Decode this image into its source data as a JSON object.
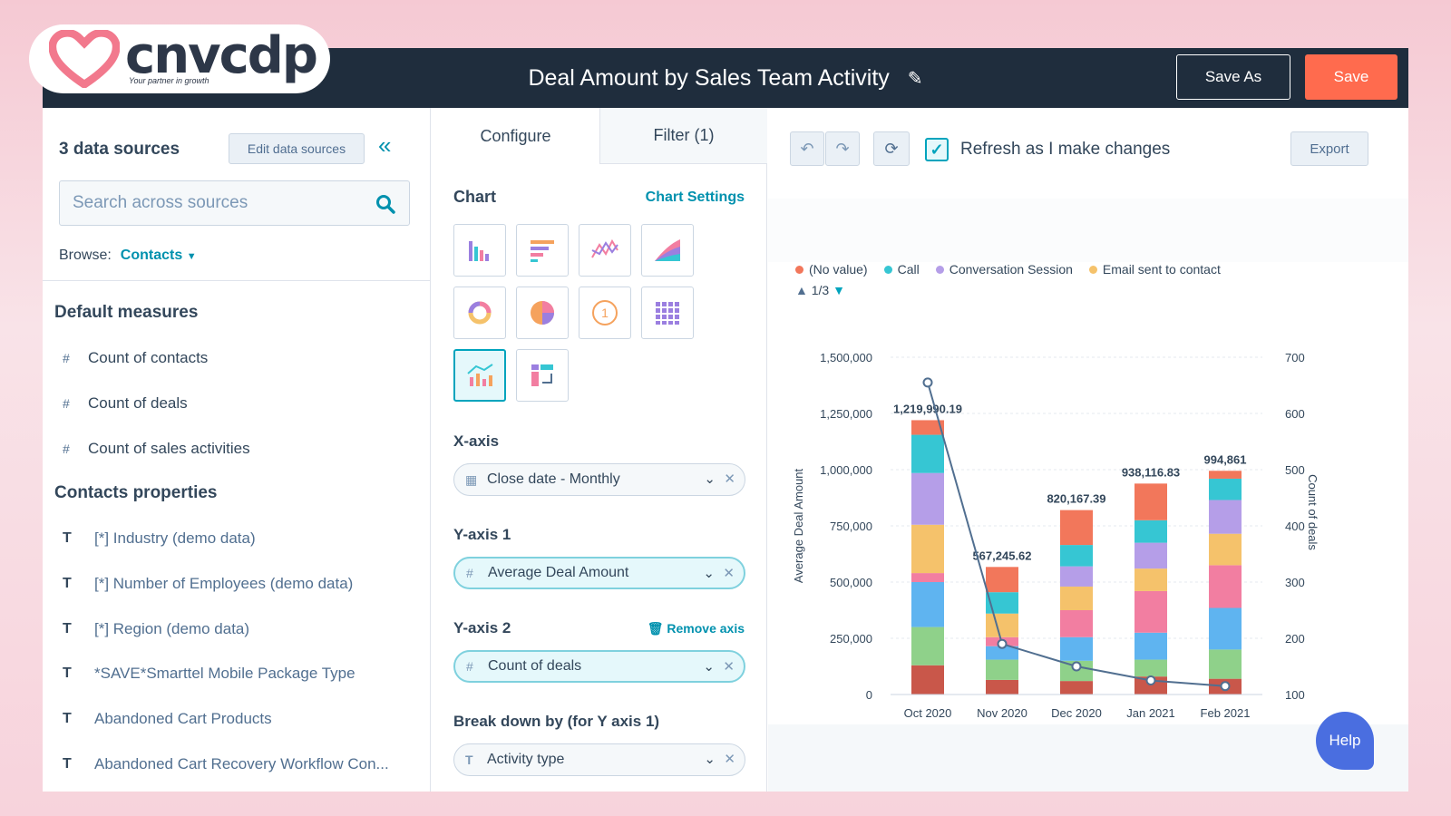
{
  "brand": {
    "name": "cnvcdp",
    "tagline": "Your partner in growth",
    "heart_color": "#f2798d"
  },
  "header": {
    "title": "Deal Amount by Sales Team Activity",
    "save_as_label": "Save As",
    "save_label": "Save"
  },
  "left_panel": {
    "data_sources_title": "3 data sources",
    "edit_sources_label": "Edit data sources",
    "search_placeholder": "Search across sources",
    "browse_label": "Browse:",
    "browse_value": "Contacts",
    "default_measures_title": "Default measures",
    "measures": [
      "Count of contacts",
      "Count of deals",
      "Count of sales activities"
    ],
    "contacts_properties_title": "Contacts properties",
    "properties": [
      "[*] Industry (demo data)",
      "[*] Number of Employees (demo data)",
      "[*] Region (demo data)",
      "*SAVE*Smarttel Mobile Package Type",
      "Abandoned Cart Products",
      "Abandoned Cart Recovery Workflow Con..."
    ]
  },
  "config_panel": {
    "tab_configure": "Configure",
    "tab_filter": "Filter (1)",
    "chart_title": "Chart",
    "chart_settings_label": "Chart Settings",
    "xaxis_label": "X-axis",
    "xaxis_value": "Close date - Monthly",
    "yaxis1_label": "Y-axis 1",
    "yaxis1_value": "Average Deal Amount",
    "yaxis2_label": "Y-axis 2",
    "remove_axis_label": "Remove axis",
    "yaxis2_value": "Count of deals",
    "breakdown_label": "Break down by (for Y axis 1)",
    "breakdown_value": "Activity type"
  },
  "chart_toolbar": {
    "refresh_label": "Refresh as I make changes",
    "refresh_checked": true,
    "export_label": "Export"
  },
  "legend_items": [
    {
      "name": "(No value)",
      "color": "#f2775b"
    },
    {
      "name": "Call",
      "color": "#36c6d3"
    },
    {
      "name": "Conversation Session",
      "color": "#b59ee8"
    },
    {
      "name": "Email sent to contact",
      "color": "#f5c26b"
    }
  ],
  "legend_pager": "1/3",
  "chart_data": {
    "type": "bar",
    "categories": [
      "Oct 2020",
      "Nov 2020",
      "Dec 2020",
      "Jan 2021",
      "Feb 2021"
    ],
    "xlabel": "Close date - Monthly",
    "ylabel": "Average Deal Amount",
    "y2label": "Count of deals",
    "ylim": [
      0,
      1500000
    ],
    "y2lim": [
      100,
      700
    ],
    "yticks": [
      "1,500,000",
      "1,250,000",
      "1,000,000",
      "750,000",
      "500,000",
      "250,000",
      "0"
    ],
    "y2ticks": [
      "700",
      "600",
      "500",
      "400",
      "300",
      "200",
      "100"
    ],
    "totals": [
      1219990.19,
      567245.62,
      820167.39,
      938116.83,
      994861
    ],
    "total_labels": [
      "1,219,990.19",
      "567,245.62",
      "820,167.39",
      "938,116.83",
      "994,861"
    ],
    "series": [
      {
        "color": "#c9574a",
        "values": [
          130000,
          65000,
          60000,
          80000,
          70000
        ]
      },
      {
        "color": "#8fd18a",
        "values": [
          170000,
          90000,
          90000,
          75000,
          130000
        ]
      },
      {
        "color": "#5fb4f0",
        "values": [
          200000,
          60000,
          105000,
          120000,
          185000
        ]
      },
      {
        "color": "#f27ea1",
        "values": [
          40000,
          40000,
          120000,
          185000,
          190000
        ]
      },
      {
        "color": "#f5c26b",
        "values": [
          215000,
          105000,
          105000,
          100000,
          140000
        ]
      },
      {
        "color": "#b59ee8",
        "values": [
          230000,
          0,
          90000,
          115000,
          150000
        ]
      },
      {
        "color": "#36c6d3",
        "values": [
          170000,
          95000,
          95000,
          100000,
          94861
        ]
      },
      {
        "color": "#f2775b",
        "values": [
          64990.19,
          112245.62,
          155167.39,
          163116.83,
          35000
        ]
      }
    ],
    "line": {
      "name": "Count of deals",
      "color": "#516f90",
      "values": [
        655,
        190,
        150,
        125,
        115
      ]
    }
  },
  "help_label": "Help"
}
